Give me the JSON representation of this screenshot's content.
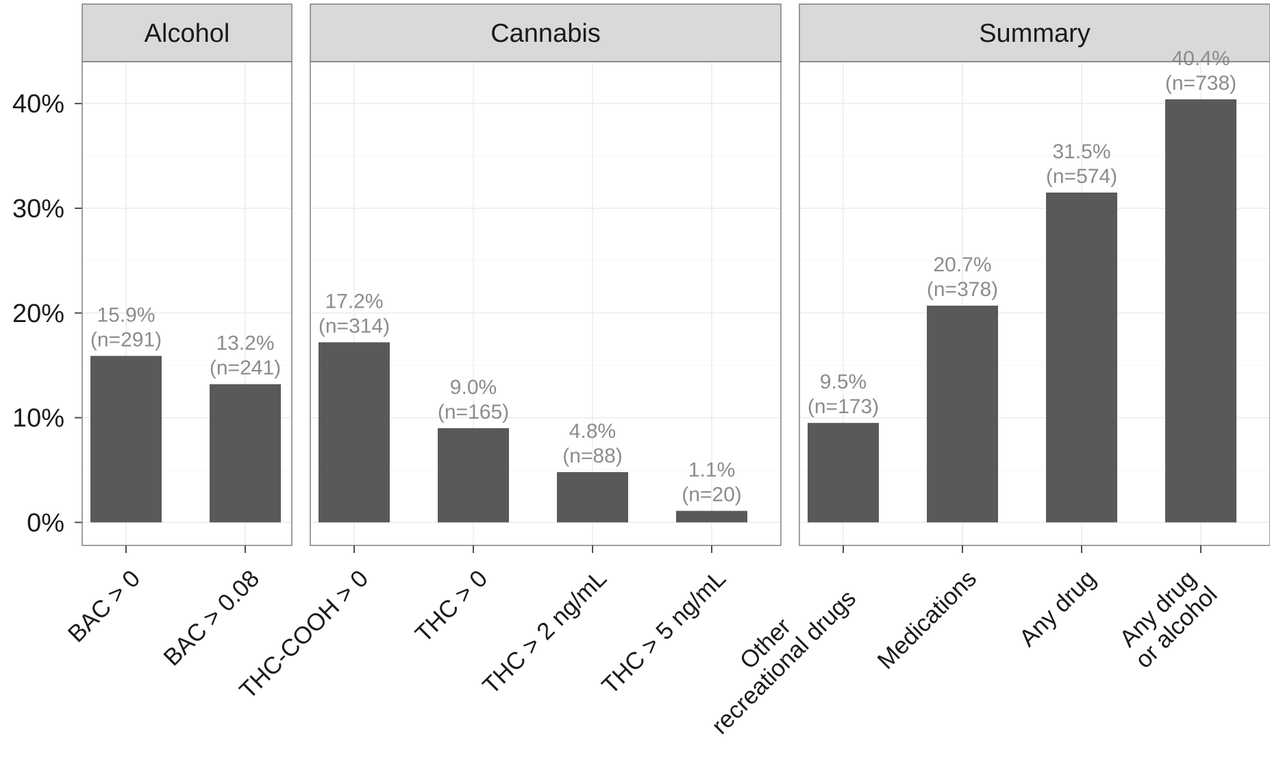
{
  "chart_data": {
    "type": "bar",
    "ylim": [
      -2.2,
      44
    ],
    "y_ticks": [
      0,
      10,
      20,
      30,
      40
    ],
    "y_tick_labels": [
      "0%",
      "10%",
      "20%",
      "30%",
      "40%"
    ],
    "grid": true,
    "colors": {
      "bar": "#595959",
      "label": "#8c8c8c",
      "strip_fill": "#d9d9d9",
      "panel_border": "#7f7f7f",
      "grid": "#ebebeb"
    },
    "panels": [
      {
        "title": "Alcohol",
        "categories": [
          [
            "BAC > 0"
          ],
          [
            "BAC > 0.08"
          ]
        ],
        "values": [
          15.9,
          13.2
        ],
        "percent_labels": [
          "15.9%",
          "13.2%"
        ],
        "n_labels": [
          "(n=291)",
          "(n=241)"
        ]
      },
      {
        "title": "Cannabis",
        "categories": [
          [
            "THC-COOH > 0"
          ],
          [
            "THC > 0"
          ],
          [
            "THC > 2 ng/mL"
          ],
          [
            "THC > 5 ng/mL"
          ]
        ],
        "values": [
          17.2,
          9.0,
          4.8,
          1.1
        ],
        "percent_labels": [
          "17.2%",
          "9.0%",
          "4.8%",
          "1.1%"
        ],
        "n_labels": [
          "(n=314)",
          "(n=165)",
          "(n=88)",
          "(n=20)"
        ]
      },
      {
        "title": "Summary",
        "categories": [
          [
            "Other",
            "recreational drugs"
          ],
          [
            "Medications"
          ],
          [
            "Any drug"
          ],
          [
            "Any drug",
            "or alcohol"
          ]
        ],
        "values": [
          9.5,
          20.7,
          31.5,
          40.4
        ],
        "percent_labels": [
          "9.5%",
          "20.7%",
          "31.5%",
          "40.4%"
        ],
        "n_labels": [
          "(n=173)",
          "(n=378)",
          "(n=574)",
          "(n=738)"
        ]
      }
    ]
  }
}
